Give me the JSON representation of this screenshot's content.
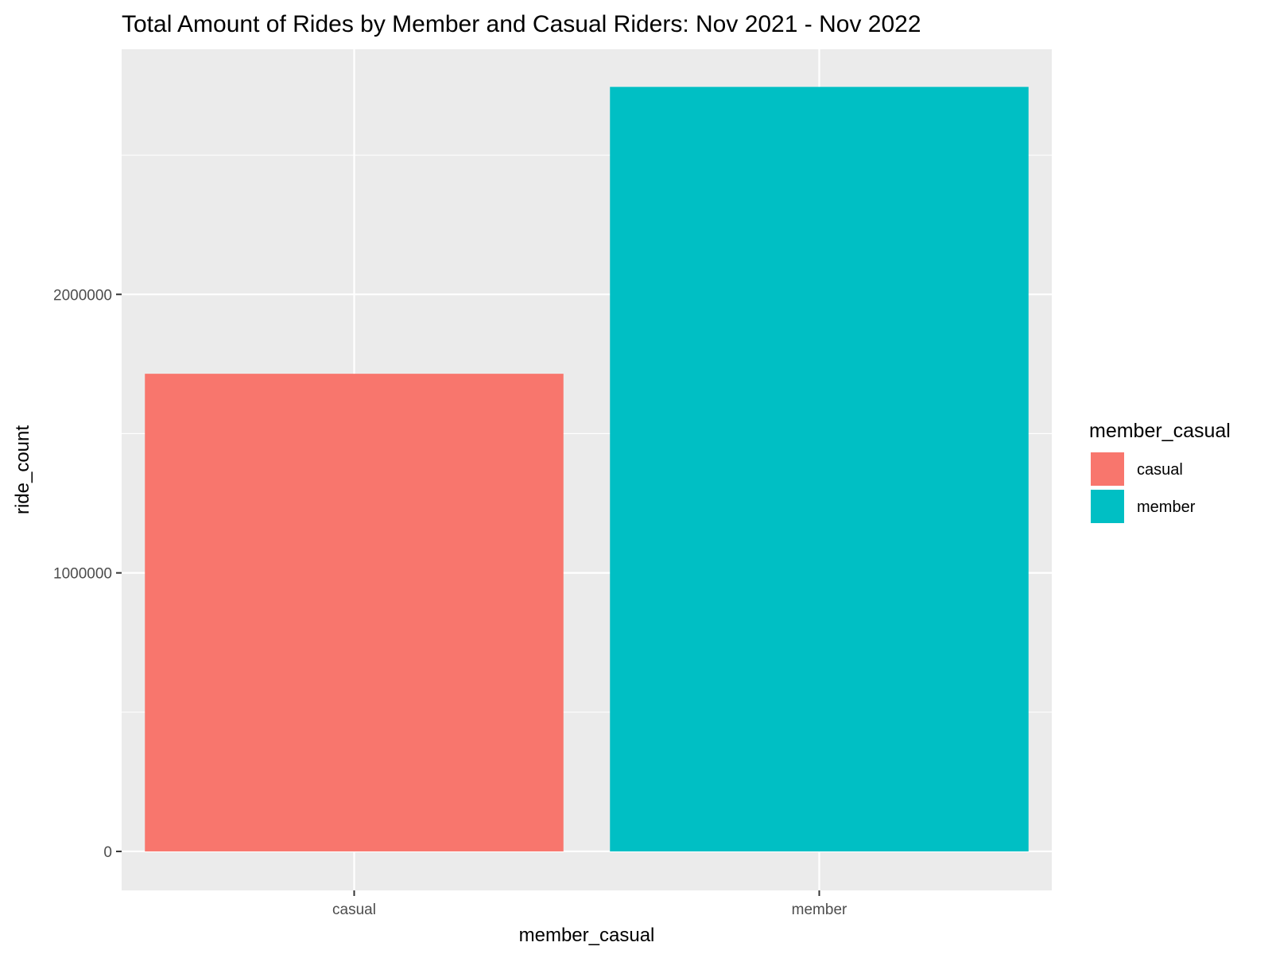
{
  "chart_data": {
    "type": "bar",
    "title": "Total Amount of Rides by Member and Casual Riders: Nov 2021 - Nov 2022",
    "xlabel": "member_casual",
    "ylabel": "ride_count",
    "categories": [
      "casual",
      "member"
    ],
    "values": [
      1715000,
      2745000
    ],
    "ylim": [
      -140000,
      2880000
    ],
    "yticks": [
      0,
      1000000,
      2000000
    ],
    "ytick_labels": [
      "0",
      "1000000",
      "2000000"
    ],
    "grid": true,
    "colors": [
      "#F8766D",
      "#00BFC4"
    ],
    "panel_background": "#EBEBEB",
    "legend": {
      "title": "member_casual",
      "placement": "right",
      "items": [
        {
          "label": "casual",
          "color": "#F8766D"
        },
        {
          "label": "member",
          "color": "#00BFC4"
        }
      ]
    }
  }
}
